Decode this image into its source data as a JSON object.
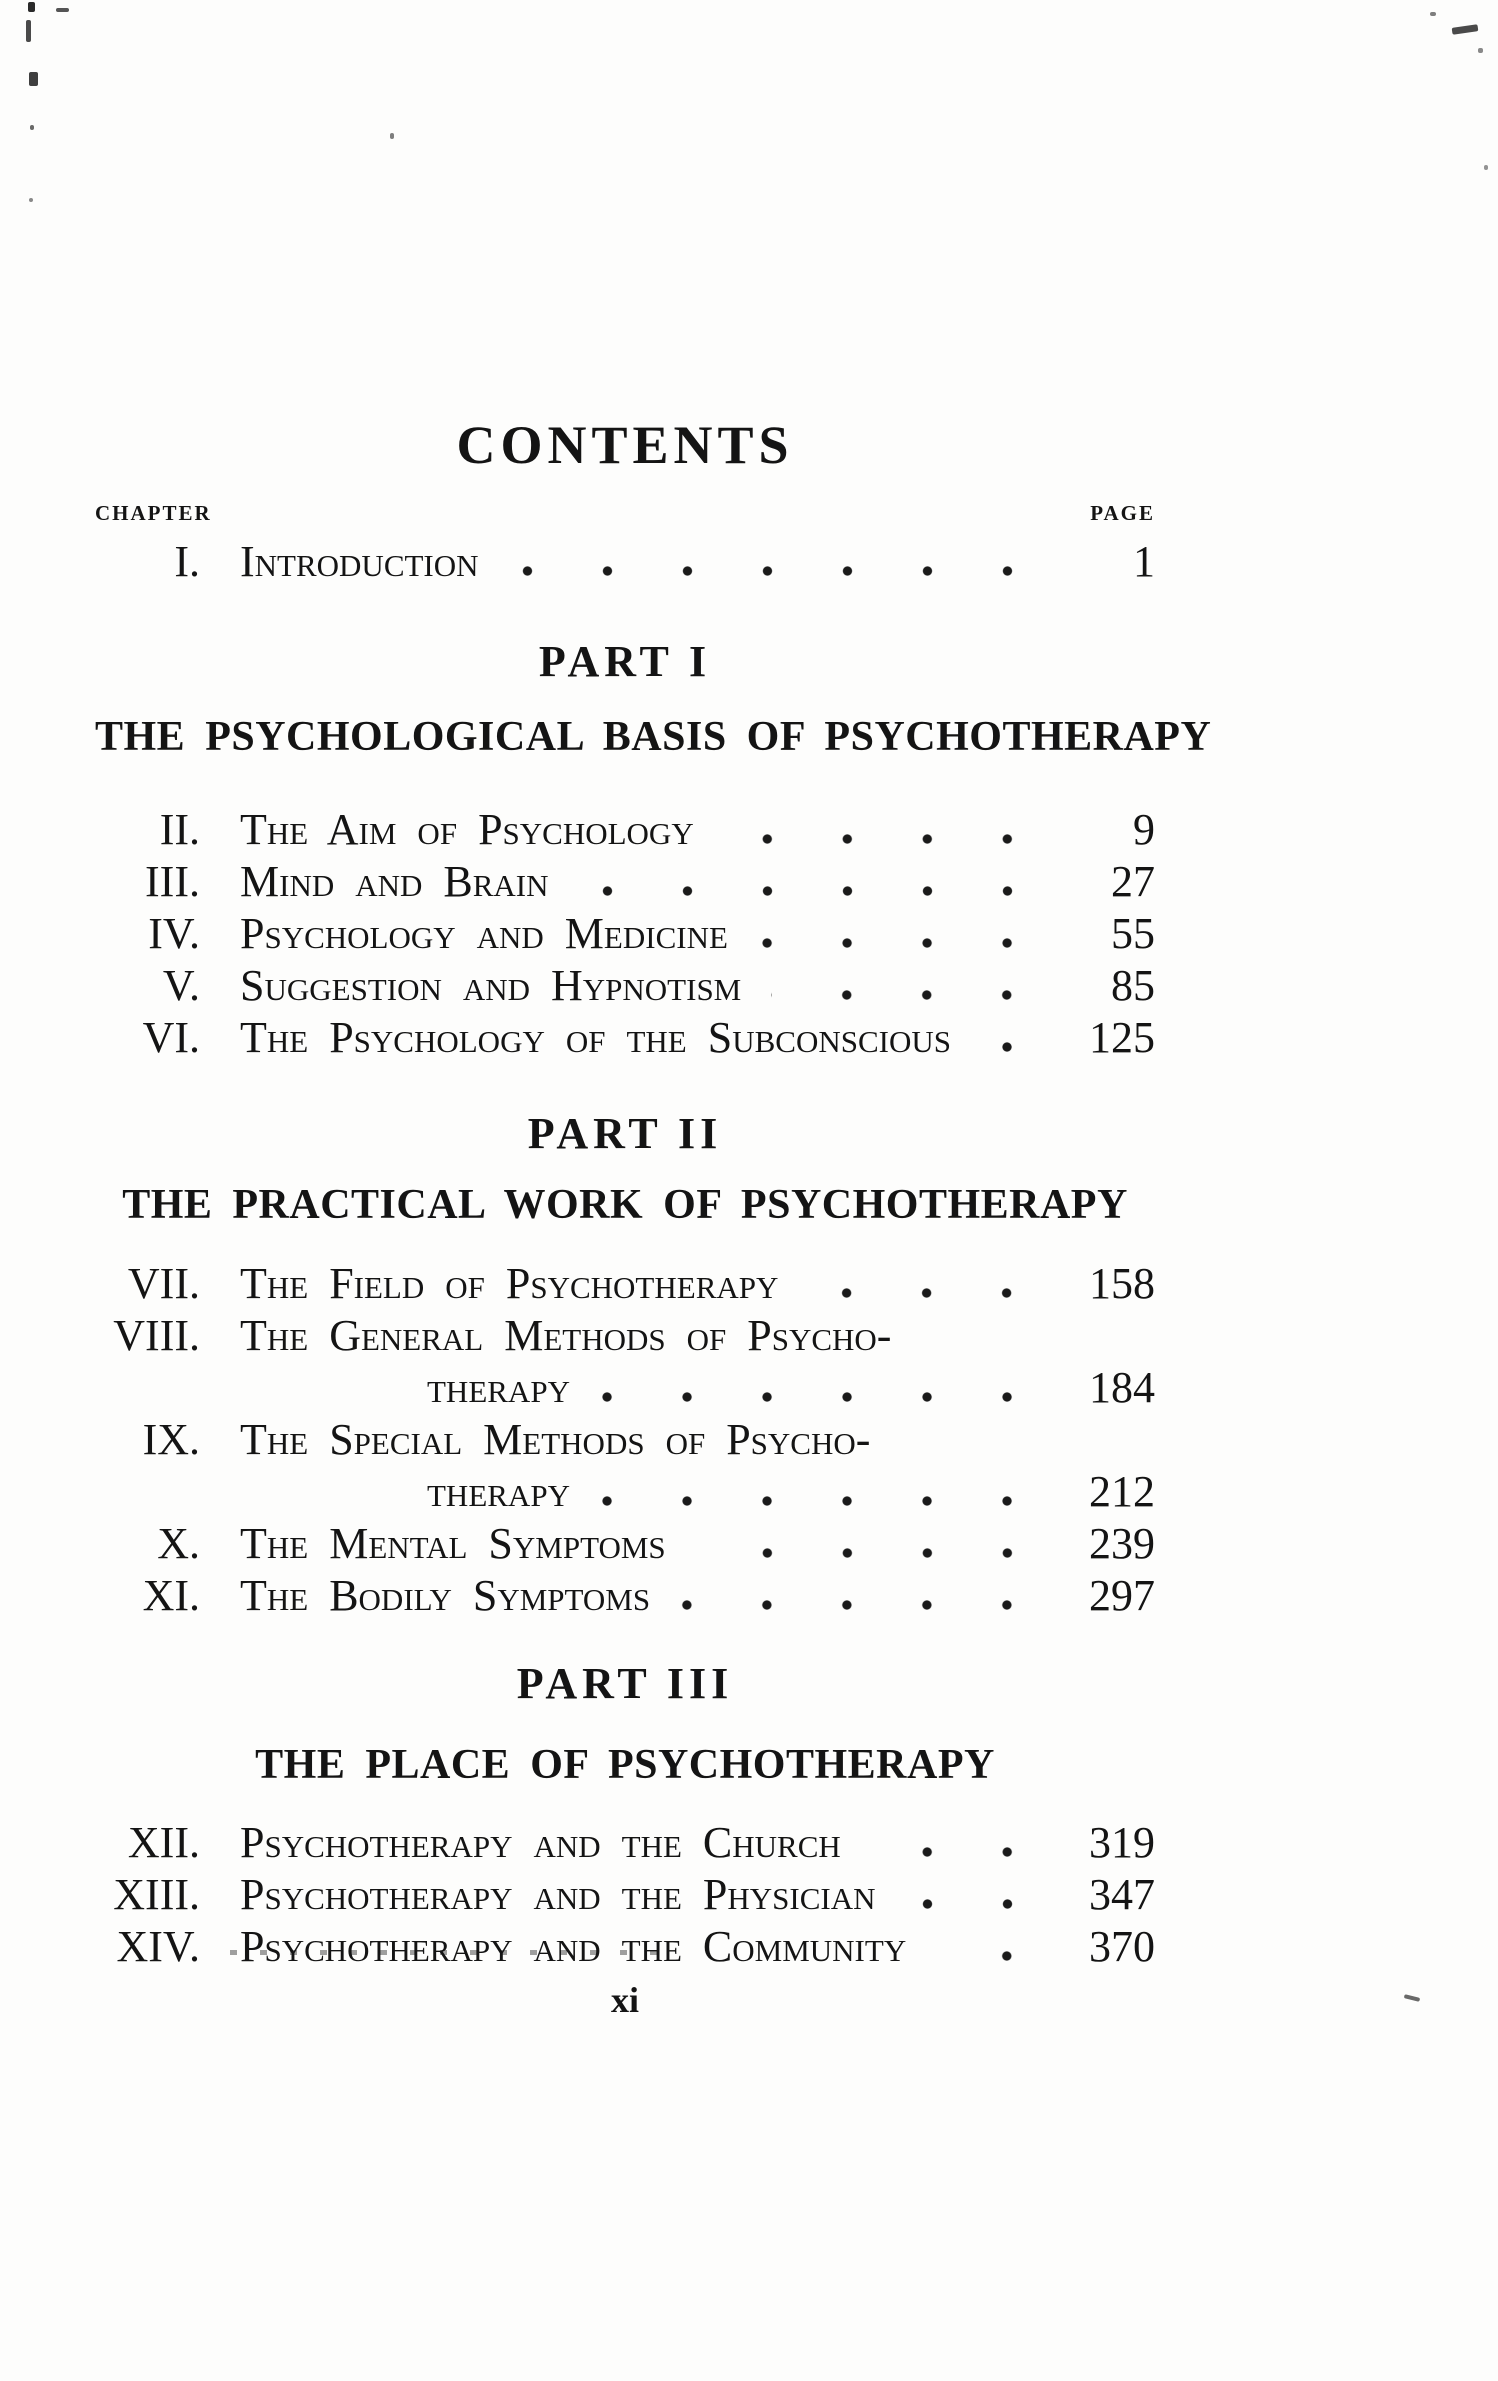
{
  "page_title": "CONTENTS",
  "headers": {
    "chapter": "CHAPTER",
    "page": "PAGE"
  },
  "introduction": {
    "numeral": "I.",
    "title": "Introduction",
    "page": "1"
  },
  "part1": {
    "heading": "PART I",
    "subtitle": "THE PSYCHOLOGICAL BASIS OF PSYCHOTHERAPY",
    "entries": [
      {
        "numeral": "II.",
        "title": "The Aim of Psychology",
        "page": "9"
      },
      {
        "numeral": "III.",
        "title": "Mind and Brain",
        "page": "27"
      },
      {
        "numeral": "IV.",
        "title": "Psychology and Medicine",
        "page": "55"
      },
      {
        "numeral": "V.",
        "title": "Suggestion and Hypnotism",
        "page": "85"
      },
      {
        "numeral": "VI.",
        "title": "The Psychology of the Subconscious",
        "page": "125"
      }
    ]
  },
  "part2": {
    "heading": "PART II",
    "subtitle": "THE PRACTICAL WORK OF PSYCHOTHERAPY",
    "entries": [
      {
        "numeral": "VII.",
        "title": "The Field of Psychotherapy",
        "page": "158"
      },
      {
        "numeral": "VIII.",
        "title": "The General Methods of Psycho-",
        "continuation": "therapy",
        "page": "184"
      },
      {
        "numeral": "IX.",
        "title": "The Special Methods of Psycho-",
        "continuation": "therapy",
        "page": "212"
      },
      {
        "numeral": "X.",
        "title": "The Mental Symptoms",
        "page": "239"
      },
      {
        "numeral": "XI.",
        "title": "The Bodily Symptoms",
        "page": "297"
      }
    ]
  },
  "part3": {
    "heading": "PART III",
    "subtitle": "THE PLACE OF PSYCHOTHERAPY",
    "entries": [
      {
        "numeral": "XII.",
        "title": "Psychotherapy and the Church",
        "page": "319"
      },
      {
        "numeral": "XIII.",
        "title": "Psychotherapy and the Physician",
        "page": "347"
      },
      {
        "numeral": "XIV.",
        "title": "Psychotherapy and the Community",
        "page": "370"
      }
    ]
  },
  "footer": {
    "page_number": "xi"
  },
  "colors": {
    "ink": "#141414",
    "paper": "#fdfdfc"
  }
}
